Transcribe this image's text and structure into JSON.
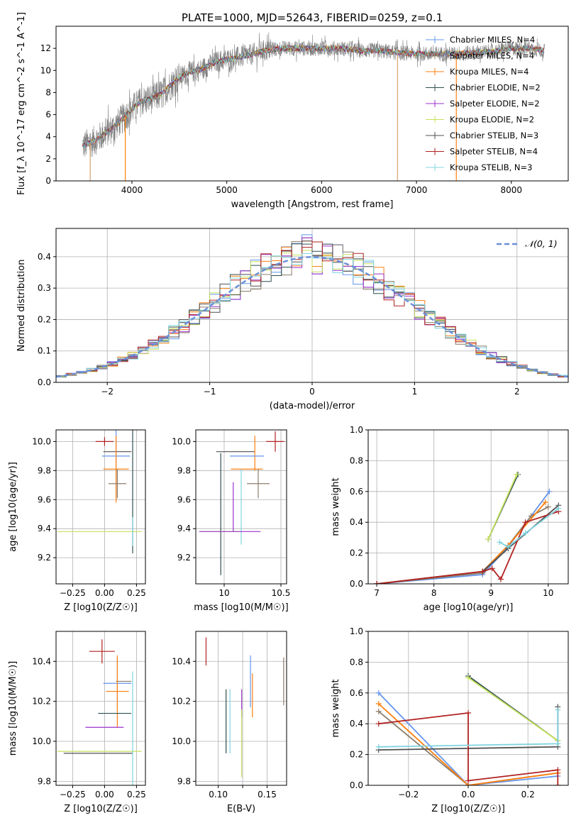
{
  "figure_title": "PLATE=1000, MJD=52643, FIBERID=0259, z=0.1",
  "legend_labels": [
    "Chabrier MILES, N_SSP=4",
    "Salpeter MILES, N_SSP=4",
    "Kroupa MILES, N_SSP=4",
    "Chabrier ELODIE, N_SSP=2",
    "Salpeter ELODIE, N_SSP=2",
    "Kroupa ELODIE, N_SSP=2",
    "Chabrier STELIB, N_SSP=3",
    "Salpeter STELIB, N_SSP=4",
    "Kroupa STELIB, N_SSP=3"
  ],
  "model_colors": [
    "#6495ed",
    "#8b7d6b",
    "#ff7f0e",
    "#2f4f4f",
    "#9932cc",
    "#c5e15b",
    "#505050",
    "#b22222",
    "#80d4e0"
  ],
  "chart_data": [
    {
      "type": "line",
      "id": "spectrum",
      "title": "PLATE=1000, MJD=52643, FIBERID=0259, z=0.1",
      "xlabel": "wavelength [Angstrom, rest frame]",
      "ylabel": "Flux [f_λ 10^-17 erg cm^-2 s^-1 A^-1]",
      "xlim": [
        3200,
        8600
      ],
      "ylim": [
        0,
        14
      ],
      "xticks": [
        4000,
        5000,
        6000,
        7000,
        8000
      ],
      "yticks": [
        0,
        2,
        4,
        6,
        8,
        10,
        12
      ],
      "legend_position": "upper right",
      "data_color": "#808080",
      "spectrum_knots_x": [
        3480,
        3600,
        3700,
        3800,
        3900,
        4000,
        4100,
        4200,
        4300,
        4400,
        4500,
        4600,
        4700,
        4800,
        4900,
        5000,
        5200,
        5400,
        5600,
        5800,
        6000,
        6200,
        6400,
        6600,
        6800,
        7000,
        7200,
        7400,
        7600,
        7800,
        8000,
        8200,
        8350
      ],
      "spectrum_knots_y": [
        3.2,
        3.6,
        4.2,
        4.8,
        5.6,
        6.5,
        7.2,
        7.4,
        7.8,
        8.6,
        9.4,
        9.8,
        10.0,
        10.4,
        10.8,
        11.0,
        11.3,
        11.8,
        12.0,
        12.0,
        12.0,
        12.0,
        11.8,
        11.8,
        11.6,
        11.5,
        11.5,
        11.5,
        11.6,
        11.7,
        12.0,
        12.0,
        11.8
      ]
    },
    {
      "type": "line",
      "id": "residual-histogram",
      "xlabel": "(data-model)/error",
      "ylabel": "Normed distribution",
      "xlim": [
        -2.5,
        2.5
      ],
      "ylim": [
        0,
        0.49
      ],
      "xticks": [
        -2,
        -1,
        0,
        1,
        2
      ],
      "yticks": [
        0.0,
        0.1,
        0.2,
        0.3,
        0.4
      ],
      "grid": true,
      "legend_position": "upper right",
      "reference_curve": {
        "name": "N(0,1)",
        "mean": 0,
        "sigma": 1,
        "color": "#6a8fd8",
        "style": "dashed"
      },
      "bin_width": 0.1,
      "histogram_peaks": [
        0.47,
        0.46,
        0.45,
        0.44,
        0.46,
        0.42,
        0.45,
        0.43,
        0.41
      ]
    },
    {
      "type": "scatter",
      "id": "age-vs-Z",
      "xlabel": "Z [log10(Z/Z☉)]",
      "ylabel": "age [log10(age/yr)]",
      "xlim": [
        -0.38,
        0.32
      ],
      "ylim": [
        9.02,
        10.08
      ],
      "xticks": [
        -0.25,
        0.0,
        0.25
      ],
      "xticklabels": [
        "−0.25",
        "0.00",
        "0.25"
      ],
      "yticks": [
        9.2,
        9.4,
        9.6,
        9.8,
        10.0
      ],
      "grid": true,
      "errorbars": [
        {
          "model": 7,
          "x": 0.0,
          "y": 10.0,
          "xerr": 0.07,
          "yerr": 0.03
        },
        {
          "model": 6,
          "x": 0.1,
          "y": 9.93,
          "xerr": 0.11,
          "yerr": 0.0
        },
        {
          "model": 0,
          "x": 0.09,
          "y": 9.9,
          "xerr": 0.11,
          "yerr": 0.3
        },
        {
          "model": 2,
          "x": 0.09,
          "y": 9.81,
          "xerr": 0.1,
          "yerr": 0.23
        },
        {
          "model": 4,
          "x": 0.0,
          "y": 9.0,
          "xerr": 0.0,
          "yerr": 0.0
        },
        {
          "model": 1,
          "x": 0.1,
          "y": 9.71,
          "xerr": 0.07,
          "yerr": 0.1
        },
        {
          "model": 3,
          "x": 0.22,
          "y": 9.93,
          "xerr": 0.0,
          "yerr": 0.7
        },
        {
          "model": 5,
          "x": -0.04,
          "y": 9.38,
          "xerr": 0.33,
          "yerr": 0.0
        },
        {
          "model": 8,
          "x": 0.22,
          "y": 9.38,
          "xerr": 0.0,
          "yerr": 0.1
        }
      ]
    },
    {
      "type": "scatter",
      "id": "age-vs-mass",
      "xlabel": "mass [log10(M/M☉)]",
      "ylabel": "",
      "xlim": [
        9.75,
        10.55
      ],
      "ylim": [
        9.02,
        10.08
      ],
      "xticks": [
        10.0,
        10.5
      ],
      "yticks": [
        9.2,
        9.4,
        9.6,
        9.8,
        10.0
      ],
      "grid": true,
      "errorbars": [
        {
          "model": 7,
          "x": 10.45,
          "y": 10.0,
          "xerr": 0.08,
          "yerr": 0.07
        },
        {
          "model": 6,
          "x": 10.1,
          "y": 9.93,
          "xerr": 0.17,
          "yerr": 0.0
        },
        {
          "model": 2,
          "x": 10.27,
          "y": 9.92,
          "xerr": 0.0,
          "yerr": 0.12
        },
        {
          "model": 0,
          "x": 10.2,
          "y": 9.9,
          "xerr": 0.15,
          "yerr": 0.0
        },
        {
          "model": 2,
          "x": 10.2,
          "y": 9.81,
          "xerr": 0.14,
          "yerr": 0.0
        },
        {
          "model": 1,
          "x": 10.3,
          "y": 9.71,
          "xerr": 0.1,
          "yerr": 0.1
        },
        {
          "model": 3,
          "x": 9.97,
          "y": 9.5,
          "xerr": 0.0,
          "yerr": 0.42
        },
        {
          "model": 4,
          "x": 10.08,
          "y": 9.55,
          "xerr": 0.0,
          "yerr": 0.17
        },
        {
          "model": 5,
          "x": 9.97,
          "y": 9.38,
          "xerr": 0.17,
          "yerr": 0.0
        },
        {
          "model": 8,
          "x": 10.15,
          "y": 9.55,
          "xerr": 0.0,
          "yerr": 0.26
        },
        {
          "model": 4,
          "x": 10.05,
          "y": 9.38,
          "xerr": 0.27,
          "yerr": 0.0
        }
      ]
    },
    {
      "type": "line",
      "id": "mass-weight-vs-age",
      "xlabel": "age [log10(age/yr)]",
      "ylabel": "mass weight",
      "xlim": [
        6.85,
        10.35
      ],
      "ylim": [
        0,
        1.0
      ],
      "xticks": [
        7,
        8,
        9,
        10
      ],
      "yticks": [
        0.0,
        0.2,
        0.4,
        0.6,
        0.8,
        1.0
      ],
      "grid": true,
      "series": [
        {
          "model": 0,
          "x": [
            7.0,
            8.85,
            9.3,
            10.02
          ],
          "y": [
            0.0,
            0.06,
            0.24,
            0.6
          ]
        },
        {
          "model": 1,
          "x": [
            7.0,
            8.85,
            9.3,
            9.7,
            10.0
          ],
          "y": [
            0.0,
            0.07,
            0.25,
            0.44,
            0.5
          ]
        },
        {
          "model": 2,
          "x": [
            7.0,
            8.85,
            9.3,
            9.95
          ],
          "y": [
            0.0,
            0.08,
            0.25,
            0.53
          ]
        },
        {
          "model": 3,
          "x": [
            8.95,
            9.47
          ],
          "y": [
            0.29,
            0.71
          ]
        },
        {
          "model": 5,
          "x": [
            8.95,
            9.45
          ],
          "y": [
            0.29,
            0.71
          ]
        },
        {
          "model": 6,
          "x": [
            7.0,
            8.85,
            9.3,
            10.18
          ],
          "y": [
            0.0,
            0.08,
            0.23,
            0.51
          ]
        },
        {
          "model": 7,
          "x": [
            7.0,
            8.85,
            9.02,
            9.17,
            9.6,
            10.18
          ],
          "y": [
            0.0,
            0.08,
            0.1,
            0.03,
            0.4,
            0.47
          ]
        },
        {
          "model": 8,
          "x": [
            9.15,
            9.3,
            9.6,
            10.18
          ],
          "y": [
            0.27,
            0.24,
            0.33,
            0.49
          ]
        }
      ]
    },
    {
      "type": "scatter",
      "id": "mass-vs-Z",
      "xlabel": "Z [log10(Z/Z☉)]",
      "ylabel": "mass [log10(M/M☉)]",
      "xlim": [
        -0.38,
        0.32
      ],
      "ylim": [
        9.78,
        10.55
      ],
      "xticks": [
        -0.25,
        0.0,
        0.25
      ],
      "xticklabels": [
        "−0.25",
        "0.00",
        "0.25"
      ],
      "yticks": [
        9.8,
        10.0,
        10.2,
        10.4
      ],
      "grid": true,
      "errorbars": [
        {
          "model": 7,
          "x": -0.02,
          "y": 10.45,
          "xerr": 0.1,
          "yerr": 0.06
        },
        {
          "model": 0,
          "x": 0.1,
          "y": 10.29,
          "xerr": 0.11,
          "yerr": 0.13
        },
        {
          "model": 1,
          "x": 0.15,
          "y": 10.3,
          "xerr": 0.06,
          "yerr": 0.0
        },
        {
          "model": 2,
          "x": 0.1,
          "y": 10.25,
          "xerr": 0.09,
          "yerr": 0.18
        },
        {
          "model": 3,
          "x": 0.08,
          "y": 10.14,
          "xerr": 0.13,
          "yerr": 0.0
        },
        {
          "model": 4,
          "x": 0.0,
          "y": 10.07,
          "xerr": 0.15,
          "yerr": 0.0
        },
        {
          "model": 5,
          "x": -0.04,
          "y": 9.95,
          "xerr": 0.33,
          "yerr": 0.0
        },
        {
          "model": 6,
          "x": -0.05,
          "y": 9.94,
          "xerr": 0.27,
          "yerr": 0.0
        },
        {
          "model": 8,
          "x": 0.22,
          "y": 10.05,
          "xerr": 0.0,
          "yerr": 0.3
        }
      ]
    },
    {
      "type": "scatter",
      "id": "mass-vs-ebv",
      "xlabel": "E(B-V)",
      "ylabel": "",
      "xlim": [
        0.077,
        0.17
      ],
      "ylim": [
        9.78,
        10.55
      ],
      "xticks": [
        0.1,
        0.125,
        0.15
      ],
      "xticklabels": [
        "0.10",
        "",
        "0.15"
      ],
      "yticks": [
        9.8,
        10.0,
        10.2,
        10.4
      ],
      "grid": true,
      "errorbars": [
        {
          "model": 7,
          "x": 0.0875,
          "y": 10.45,
          "xerr": 0.0,
          "yerr": 0.07
        },
        {
          "model": 0,
          "x": 0.133,
          "y": 10.3,
          "xerr": 0.0,
          "yerr": 0.13
        },
        {
          "model": 2,
          "x": 0.135,
          "y": 10.23,
          "xerr": 0.0,
          "yerr": 0.11
        },
        {
          "model": 1,
          "x": 0.167,
          "y": 10.3,
          "xerr": 0.0,
          "yerr": 0.12
        },
        {
          "model": 4,
          "x": 0.124,
          "y": 10.19,
          "xerr": 0.0,
          "yerr": 0.07
        },
        {
          "model": 3,
          "x": 0.108,
          "y": 10.1,
          "xerr": 0.0,
          "yerr": 0.16
        },
        {
          "model": 8,
          "x": 0.112,
          "y": 10.1,
          "xerr": 0.0,
          "yerr": 0.16
        },
        {
          "model": 5,
          "x": 0.124,
          "y": 9.99,
          "xerr": 0.0,
          "yerr": 0.17
        }
      ]
    },
    {
      "type": "line",
      "id": "mass-weight-vs-Z",
      "xlabel": "Z [log10(Z/Z☉)]",
      "ylabel": "mass weight",
      "xlim": [
        -0.335,
        0.335
      ],
      "ylim": [
        0,
        1.0
      ],
      "xticks": [
        -0.2,
        0.0,
        0.2
      ],
      "xticklabels": [
        "−0.2",
        "0.0",
        "0.2"
      ],
      "yticks": [
        0.0,
        0.2,
        0.4,
        0.6,
        0.8,
        1.0
      ],
      "grid": true,
      "series": [
        {
          "model": 0,
          "x": [
            -0.3,
            0.0,
            0.3
          ],
          "y": [
            0.6,
            0.0,
            0.06
          ]
        },
        {
          "model": 1,
          "x": [
            -0.3,
            0.0,
            0.3
          ],
          "y": [
            0.48,
            0.0,
            0.08
          ]
        },
        {
          "model": 2,
          "x": [
            -0.3,
            0.0,
            0.3
          ],
          "y": [
            0.53,
            0.0,
            0.08
          ]
        },
        {
          "model": 3,
          "x": [
            0.0,
            0.3
          ],
          "y": [
            0.71,
            0.29
          ]
        },
        {
          "model": 5,
          "x": [
            0.0,
            0.3
          ],
          "y": [
            0.7,
            0.29
          ]
        },
        {
          "model": 6,
          "x": [
            -0.3,
            0.3,
            0.3
          ],
          "y": [
            0.23,
            0.25,
            0.51
          ]
        },
        {
          "model": 7,
          "x": [
            -0.3,
            0.0,
            0.0,
            0.3,
            0.3
          ],
          "y": [
            0.4,
            0.47,
            0.03,
            0.1,
            0.0
          ]
        },
        {
          "model": 8,
          "x": [
            -0.3,
            0.3,
            0.3
          ],
          "y": [
            0.25,
            0.27,
            0.49
          ]
        }
      ]
    }
  ]
}
